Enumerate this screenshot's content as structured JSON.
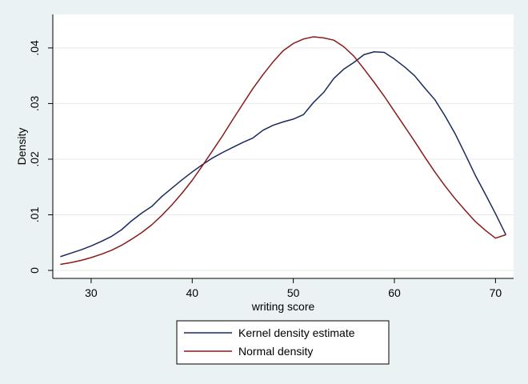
{
  "chart_data": {
    "type": "line",
    "xlabel": "writing score",
    "ylabel": "Density",
    "xlim": [
      27,
      71
    ],
    "ylim": [
      0,
      0.042
    ],
    "x_ticks": [
      30,
      40,
      50,
      60,
      70
    ],
    "x_tick_labels": [
      "30",
      "40",
      "50",
      "60",
      "70"
    ],
    "y_ticks": [
      0,
      0.01,
      0.02,
      0.03,
      0.04
    ],
    "y_tick_labels": [
      "0",
      ".01",
      ".02",
      ".03",
      ".04"
    ],
    "grid": "horizontal",
    "legend_position": "bottom",
    "series": [
      {
        "name": "Kernel density estimate",
        "color": "#1a2a5e",
        "x": [
          27,
          28,
          29,
          30,
          31,
          32,
          33,
          34,
          35,
          36,
          37,
          38,
          39,
          40,
          41,
          42,
          43,
          44,
          45,
          46,
          47,
          48,
          49,
          50,
          51,
          52,
          53,
          54,
          55,
          56,
          57,
          58,
          59,
          60,
          61,
          62,
          63,
          64,
          65,
          66,
          67,
          68,
          69,
          70,
          71
        ],
        "y": [
          0.0025,
          0.0031,
          0.0037,
          0.0044,
          0.0052,
          0.0061,
          0.0073,
          0.0089,
          0.0103,
          0.0115,
          0.0133,
          0.0148,
          0.0163,
          0.0177,
          0.019,
          0.0202,
          0.0212,
          0.0221,
          0.023,
          0.0238,
          0.0252,
          0.0261,
          0.0267,
          0.0272,
          0.028,
          0.0302,
          0.032,
          0.0345,
          0.0362,
          0.0374,
          0.0388,
          0.0393,
          0.0392,
          0.038,
          0.0366,
          0.035,
          0.0328,
          0.0307,
          0.0278,
          0.0246,
          0.0209,
          0.0171,
          0.0137,
          0.0102,
          0.0065
        ]
      },
      {
        "name": "Normal density",
        "color": "#8b1a1a",
        "x": [
          27,
          28,
          29,
          30,
          31,
          32,
          33,
          34,
          35,
          36,
          37,
          38,
          39,
          40,
          41,
          42,
          43,
          44,
          45,
          46,
          47,
          48,
          49,
          50,
          51,
          52,
          53,
          54,
          55,
          56,
          57,
          58,
          59,
          60,
          61,
          62,
          63,
          64,
          65,
          66,
          67,
          68,
          69,
          70,
          71
        ],
        "y": [
          0.0011,
          0.0014,
          0.0018,
          0.0023,
          0.0029,
          0.0036,
          0.0045,
          0.0056,
          0.0068,
          0.0082,
          0.0099,
          0.0118,
          0.0139,
          0.0162,
          0.0188,
          0.0215,
          0.0242,
          0.0271,
          0.0299,
          0.0327,
          0.0352,
          0.0375,
          0.0395,
          0.0408,
          0.0416,
          0.042,
          0.0418,
          0.0414,
          0.0402,
          0.0385,
          0.0362,
          0.0338,
          0.0313,
          0.0286,
          0.0259,
          0.0232,
          0.0204,
          0.0177,
          0.0152,
          0.0129,
          0.0108,
          0.0088,
          0.0072,
          0.0058,
          0.0064
        ]
      }
    ]
  }
}
